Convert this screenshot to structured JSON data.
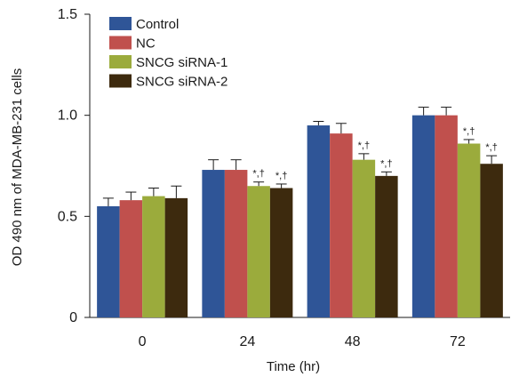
{
  "chart_data": {
    "type": "bar",
    "title": "",
    "xlabel": "Time (hr)",
    "ylabel": "OD 490 nm of MDA-MB-231 cells",
    "ylim": [
      0,
      1.5
    ],
    "yticks": [
      "0",
      "0.5",
      "1.0",
      "1.5"
    ],
    "categories": [
      "0",
      "24",
      "48",
      "72"
    ],
    "legend_position": "top-left",
    "series": [
      {
        "name": "Control",
        "color": "#2f5597",
        "values": [
          0.55,
          0.73,
          0.95,
          1.0
        ],
        "errors": [
          0.04,
          0.05,
          0.02,
          0.04
        ],
        "annotations": [
          "",
          "",
          "",
          ""
        ]
      },
      {
        "name": "NC",
        "color": "#c0504d",
        "values": [
          0.58,
          0.73,
          0.91,
          1.0
        ],
        "errors": [
          0.04,
          0.05,
          0.05,
          0.04
        ],
        "annotations": [
          "",
          "",
          "",
          ""
        ]
      },
      {
        "name": "SNCG siRNA-1",
        "color": "#9bab3c",
        "values": [
          0.6,
          0.65,
          0.78,
          0.86
        ],
        "errors": [
          0.04,
          0.02,
          0.03,
          0.02
        ],
        "annotations": [
          "",
          "*,†",
          "*,†",
          "*,†"
        ]
      },
      {
        "name": "SNCG siRNA-2",
        "color": "#3d2a0e",
        "values": [
          0.59,
          0.64,
          0.7,
          0.76
        ],
        "errors": [
          0.06,
          0.02,
          0.02,
          0.04
        ],
        "annotations": [
          "",
          "*,†",
          "*,†",
          "*,†"
        ]
      }
    ]
  }
}
